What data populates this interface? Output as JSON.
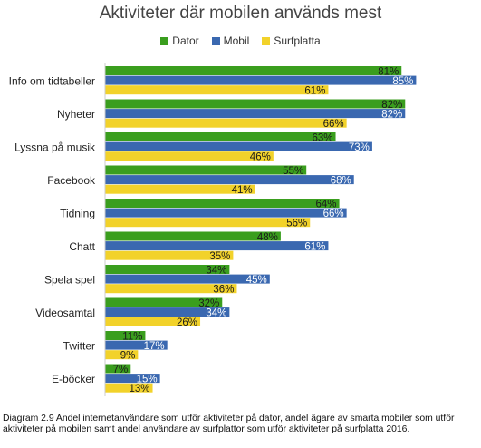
{
  "chart_data": {
    "type": "bar",
    "orientation": "horizontal",
    "title": "Aktiviteter där mobilen används mest",
    "xlim": [
      0,
      100
    ],
    "grid": false,
    "legend_position": "top",
    "categories": [
      "Info om tidtabeller",
      "Nyheter",
      "Lyssna på musik",
      "Facebook",
      "Tidning",
      "Chatt",
      "Spela spel",
      "Videosamtal",
      "Twitter",
      "E-böcker"
    ],
    "series": [
      {
        "name": "Dator",
        "color": "#3a9e1e",
        "label_color": "#1a1a1a",
        "values": [
          81,
          82,
          63,
          55,
          64,
          48,
          34,
          32,
          11,
          7
        ]
      },
      {
        "name": "Mobil",
        "color": "#3a68b0",
        "label_color": "#ffffff",
        "values": [
          85,
          82,
          73,
          68,
          66,
          61,
          45,
          34,
          17,
          15
        ]
      },
      {
        "name": "Surfplatta",
        "color": "#f2d22a",
        "label_color": "#1a1a1a",
        "values": [
          61,
          66,
          46,
          41,
          56,
          35,
          36,
          26,
          9,
          13
        ]
      }
    ],
    "value_suffix": "%"
  },
  "caption": "Diagram 2.9 Andel internetanvändare som utför aktiviteter på dator, andel ägare av smarta mobiler som utför aktiviteter på mobilen samt andel användare av surfplattor som utför aktiviteter på surfplatta 2016."
}
